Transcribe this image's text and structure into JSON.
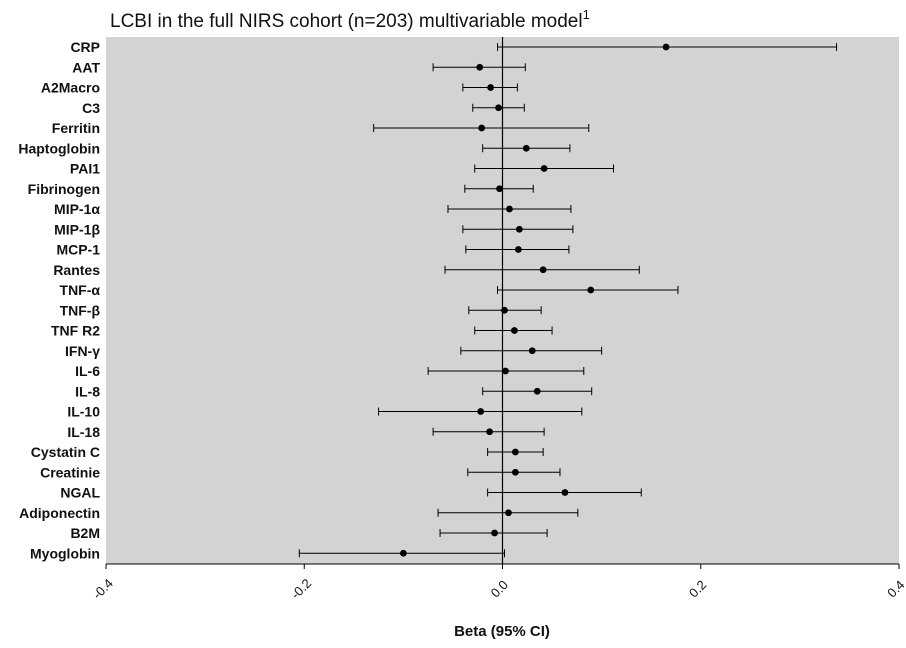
{
  "chart_data": {
    "type": "forest",
    "title": "LCBI in the full NIRS cohort (n=203) multivariable model",
    "title_superscript": "1",
    "xlabel": "Beta (95% CI)",
    "ylabel": "",
    "xlim": [
      -0.4,
      0.4
    ],
    "xticks": [
      -0.4,
      -0.2,
      0.0,
      0.2,
      0.4
    ],
    "xtick_labels": [
      "-0.4",
      "-0.2",
      "0.0",
      "0.2",
      "0.4"
    ],
    "reference_line": 0,
    "grid": false,
    "plot_background": "#d3d3d3",
    "point_color": "#000000",
    "categories": [
      "CRP",
      "AAT",
      "A2Macro",
      "C3",
      "Ferritin",
      "Haptoglobin",
      "PAI1",
      "Fibrinogen",
      "MIP-1α",
      "MIP-1β",
      "MCP-1",
      "Rantes",
      "TNF-α",
      "TNF-β",
      "TNF R2",
      "IFN-γ",
      "IL-6",
      "IL-8",
      "IL-10",
      "IL-18",
      "Cystatin C",
      "Creatinie",
      "NGAL",
      "Adiponectin",
      "B2M",
      "Myoglobin"
    ],
    "estimates": [
      0.165,
      -0.023,
      -0.012,
      -0.004,
      -0.021,
      0.024,
      0.042,
      -0.003,
      0.007,
      0.017,
      0.016,
      0.041,
      0.089,
      0.002,
      0.012,
      0.03,
      0.003,
      0.035,
      -0.022,
      -0.013,
      0.013,
      0.013,
      0.063,
      0.006,
      -0.008,
      -0.1
    ],
    "ci_lower": [
      -0.005,
      -0.07,
      -0.04,
      -0.03,
      -0.13,
      -0.02,
      -0.028,
      -0.038,
      -0.055,
      -0.04,
      -0.037,
      -0.058,
      -0.005,
      -0.034,
      -0.028,
      -0.042,
      -0.075,
      -0.02,
      -0.125,
      -0.07,
      -0.015,
      -0.035,
      -0.015,
      -0.065,
      -0.063,
      -0.205
    ],
    "ci_upper": [
      0.337,
      0.023,
      0.015,
      0.022,
      0.087,
      0.068,
      0.112,
      0.031,
      0.069,
      0.071,
      0.067,
      0.138,
      0.177,
      0.039,
      0.05,
      0.1,
      0.082,
      0.09,
      0.08,
      0.042,
      0.041,
      0.058,
      0.14,
      0.076,
      0.045,
      0.002
    ]
  }
}
